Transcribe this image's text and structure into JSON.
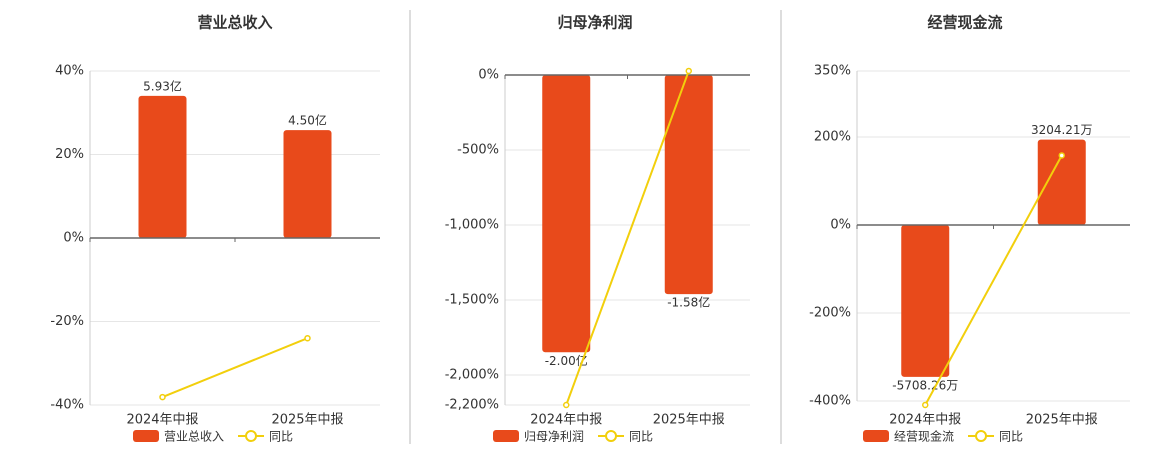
{
  "chart_data": [
    {
      "type": "bar",
      "title": "营业总收入",
      "categories": [
        "2024年中报",
        "2025年中报"
      ],
      "ylim": [
        -40,
        40
      ],
      "yticks": [
        {
          "value": -40,
          "label": "-40%"
        },
        {
          "value": -20,
          "label": "-20%"
        },
        {
          "value": 0,
          "label": "0%"
        },
        {
          "value": 20,
          "label": "20%"
        },
        {
          "value": 40,
          "label": "40%"
        }
      ],
      "y2lim": [
        -6.97,
        6.97
      ],
      "series": [
        {
          "name": "营业总收入",
          "type": "bar",
          "color": "#e84a1b",
          "axis": "y2",
          "values": [
            5.93,
            4.5
          ],
          "value_labels": [
            "5.93亿",
            "4.50亿"
          ]
        },
        {
          "name": "同比",
          "type": "line",
          "color": "#f2cf0c",
          "values": [
            -38.1,
            -24.0
          ]
        }
      ]
    },
    {
      "type": "bar",
      "title": "归母净利润",
      "categories": [
        "2024年中报",
        "2025年中报"
      ],
      "ylim": [
        -2200,
        0
      ],
      "yticks": [
        {
          "value": -2200,
          "label": "-2,200%"
        },
        {
          "value": -2000,
          "label": "-2,000%"
        },
        {
          "value": -1500,
          "label": "-1,500%"
        },
        {
          "value": -1000,
          "label": "-1,000%"
        },
        {
          "value": -500,
          "label": "-500%"
        },
        {
          "value": 0,
          "label": "0%"
        }
      ],
      "y2lim": [
        -2.38,
        0
      ],
      "series": [
        {
          "name": "归母净利润",
          "type": "bar",
          "color": "#e84a1b",
          "axis": "y2",
          "values": [
            -2.0,
            -1.58
          ],
          "value_labels": [
            "-2.00亿",
            "-1.58亿"
          ]
        },
        {
          "name": "同比",
          "type": "line",
          "color": "#f2cf0c",
          "values": [
            -2200,
            27
          ]
        }
      ]
    },
    {
      "type": "bar",
      "title": "经营现金流",
      "categories": [
        "2024年中报",
        "2025年中报"
      ],
      "ylim": [
        -400,
        350
      ],
      "yticks": [
        {
          "value": -400,
          "label": "-400%"
        },
        {
          "value": -200,
          "label": "-200%"
        },
        {
          "value": 0,
          "label": "0%"
        },
        {
          "value": 200,
          "label": "200%"
        },
        {
          "value": 350,
          "label": "350%"
        }
      ],
      "y2lim": [
        -6615,
        5784
      ],
      "series": [
        {
          "name": "经营现金流",
          "type": "bar",
          "color": "#e84a1b",
          "axis": "y2",
          "values": [
            -5708.26,
            3204.21
          ],
          "value_labels": [
            "-5708.26万",
            "3204.21万"
          ]
        },
        {
          "name": "同比",
          "type": "line",
          "color": "#f2cf0c",
          "values": [
            -409,
            158
          ]
        }
      ]
    }
  ]
}
